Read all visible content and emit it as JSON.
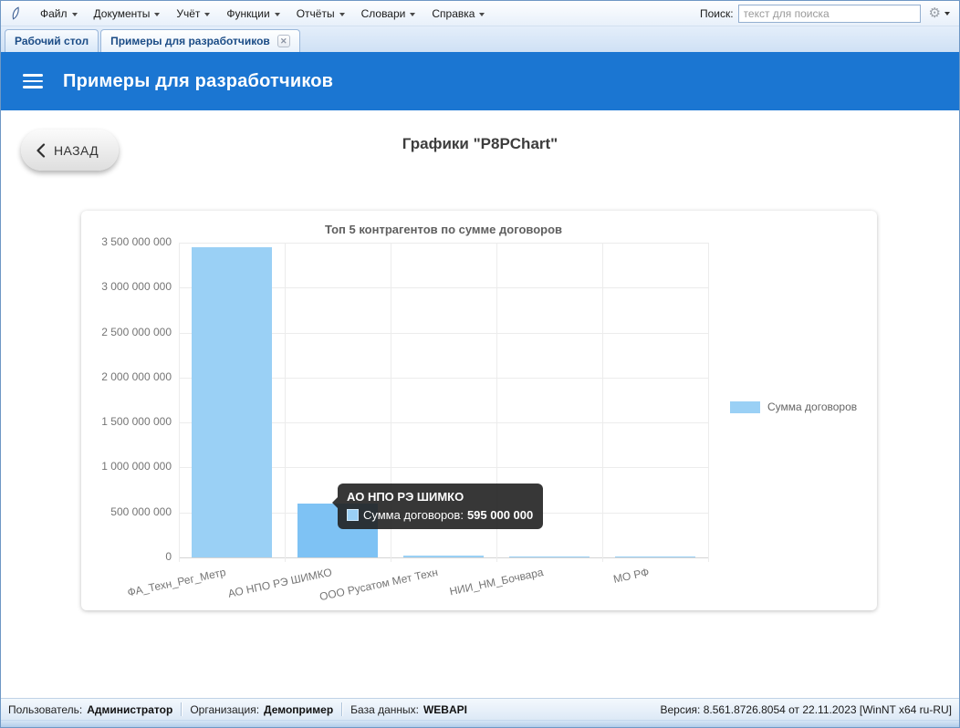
{
  "menu_bar": {
    "items": [
      "Файл",
      "Документы",
      "Учёт",
      "Функции",
      "Отчёты",
      "Словари",
      "Справка"
    ],
    "search_label": "Поиск:",
    "search_placeholder": "текст для поиска",
    "search_value": ""
  },
  "tab_bar": {
    "tabs": [
      {
        "label": "Рабочий стол",
        "active": false
      },
      {
        "label": "Примеры для разработчиков",
        "active": true,
        "close_icon": "✕"
      }
    ]
  },
  "header": {
    "title": "Примеры для разработчиков",
    "accent_color": "#1b76d2"
  },
  "content": {
    "back_button_label": "НАЗАД",
    "page_title": "Графики \"P8PChart\""
  },
  "chart_data": {
    "type": "bar",
    "title": "Топ 5 контрагентов по сумме договоров",
    "categories": [
      "ФА_Техн_Рег_Метр",
      "АО НПО РЭ ШИМКО",
      "ООО Русатом Мет Техн",
      "НИИ_НМ_Бочвара",
      "МО РФ"
    ],
    "series": [
      {
        "name": "Сумма договоров",
        "values": [
          3450000000,
          595000000,
          20000000,
          9000000,
          13000000
        ]
      }
    ],
    "ylim": [
      0,
      3500000000
    ],
    "ytick_step": 500000000,
    "grid": true,
    "legend_position": "right",
    "bar_color": "#9AD0F5",
    "bar_hover_color": "#7EC2F4",
    "hovered_index": 1,
    "tooltip": {
      "title": "АО НПО РЭ ШИМКО",
      "series_label": "Сумма договоров:",
      "value_display": "595 000 000"
    }
  },
  "status_bar": {
    "items": [
      {
        "label": "Пользователь:",
        "value": "Администратор"
      },
      {
        "label": "Организация:",
        "value": "Демопример"
      },
      {
        "label": "База данных:",
        "value": "WEBAPI"
      }
    ],
    "version": "Версия: 8.561.8726.8054 от 22.11.2023 [WinNT x64 ru-RU]"
  }
}
